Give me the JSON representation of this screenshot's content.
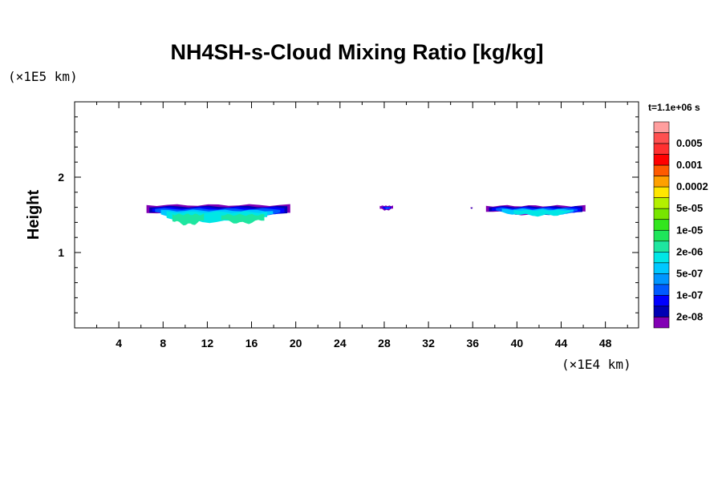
{
  "chart_data": {
    "type": "contour",
    "title": "NH4SH-s-Cloud Mixing Ratio [kg/kg]",
    "ylabel": "Height",
    "x_unit": "(×1E4 km)",
    "y_unit": "(×1E5 km)",
    "time_label": "t=1.1e+06 s",
    "xlim": [
      0,
      51
    ],
    "ylim": [
      0,
      3
    ],
    "x_ticks": [
      4,
      8,
      12,
      16,
      20,
      24,
      28,
      32,
      36,
      40,
      44,
      48
    ],
    "y_ticks": [
      1,
      2
    ],
    "grid": false,
    "colorbar": {
      "placement": "right",
      "levels": [
        {
          "label": "",
          "color": "#ff9e9e"
        },
        {
          "label": "0.005",
          "color": "#ff5050"
        },
        {
          "label": "",
          "color": "#ff3030"
        },
        {
          "label": "0.001",
          "color": "#ff0000"
        },
        {
          "label": "",
          "color": "#ff5a00"
        },
        {
          "label": "0.0002",
          "color": "#ffa000"
        },
        {
          "label": "",
          "color": "#ffe600"
        },
        {
          "label": "5e-05",
          "color": "#b4f000"
        },
        {
          "label": "",
          "color": "#78e600"
        },
        {
          "label": "1e-05",
          "color": "#32e61e"
        },
        {
          "label": "",
          "color": "#1ee65a"
        },
        {
          "label": "2e-06",
          "color": "#1ee6a0"
        },
        {
          "label": "",
          "color": "#00e6e6"
        },
        {
          "label": "5e-07",
          "color": "#00c8ff"
        },
        {
          "label": "",
          "color": "#0096ff"
        },
        {
          "label": "1e-07",
          "color": "#005aff"
        },
        {
          "label": "",
          "color": "#0000ff"
        },
        {
          "label": "2e-08",
          "color": "#0000b4"
        },
        {
          "label": "",
          "color": "#8200b4"
        }
      ]
    },
    "regions": [
      {
        "name": "cloud-left",
        "x_range": [
          6.5,
          19.5
        ],
        "y_range": [
          1.37,
          1.63
        ],
        "max_level": "2e-06"
      },
      {
        "name": "cloud-small",
        "x_range": [
          27.6,
          28.8
        ],
        "y_range": [
          1.56,
          1.62
        ],
        "max_level": "1e-07"
      },
      {
        "name": "cloud-speck",
        "x_range": [
          35.8,
          36.0
        ],
        "y_range": [
          1.58,
          1.6
        ],
        "max_level": "2e-08"
      },
      {
        "name": "cloud-right",
        "x_range": [
          37.2,
          46.2
        ],
        "y_range": [
          1.49,
          1.62
        ],
        "max_level": "5e-07"
      }
    ]
  }
}
